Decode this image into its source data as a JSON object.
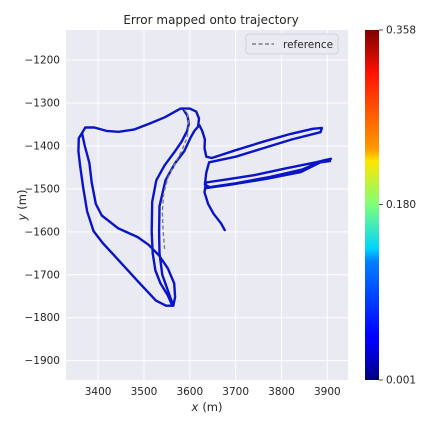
{
  "chart_data": {
    "type": "line",
    "title": "Error mapped onto trajectory",
    "xlabel_var": "x",
    "xlabel_unit": "(m)",
    "ylabel_var": "y",
    "ylabel_unit": "(m)",
    "xlim": [
      3330,
      3945
    ],
    "ylim": [
      -1945,
      -1130
    ],
    "xticks": [
      3400,
      3500,
      3600,
      3700,
      3800,
      3900
    ],
    "yticks": [
      -1200,
      -1300,
      -1400,
      -1500,
      -1600,
      -1700,
      -1800,
      -1900
    ],
    "grid": true,
    "legend": {
      "position": "top-right",
      "entries": [
        "reference"
      ]
    },
    "colorbar": {
      "colormap": "jet",
      "min": 0.001,
      "max": 0.358,
      "ticks": [
        0.001,
        0.18,
        0.358
      ],
      "tick_labels": [
        "0.001",
        "0.180",
        "0.358"
      ]
    },
    "series": [
      {
        "name": "reference",
        "style": "dashed",
        "color": "#7f7f7f",
        "points": [
          [
            3545,
            -1640
          ],
          [
            3542,
            -1600
          ],
          [
            3540,
            -1555
          ],
          [
            3543,
            -1510
          ],
          [
            3552,
            -1475
          ],
          [
            3568,
            -1440
          ],
          [
            3583,
            -1410
          ],
          [
            3594,
            -1380
          ],
          [
            3598,
            -1350
          ],
          [
            3595,
            -1325
          ],
          [
            3588,
            -1315
          ]
        ]
      },
      {
        "style": "solid-colormapped",
        "color_value": 0.02,
        "segments": [
          [
            [
              3365,
              -1370
            ],
            [
              3372,
              -1357
            ],
            [
              3392,
              -1357
            ],
            [
              3418,
              -1365
            ],
            [
              3445,
              -1367
            ],
            [
              3478,
              -1362
            ],
            [
              3512,
              -1348
            ],
            [
              3546,
              -1333
            ],
            [
              3568,
              -1320
            ],
            [
              3580,
              -1313
            ],
            [
              3600,
              -1313
            ],
            [
              3614,
              -1320
            ],
            [
              3620,
              -1336
            ],
            [
              3618,
              -1355
            ],
            [
              3610,
              -1365
            ],
            [
              3602,
              -1380
            ],
            [
              3588,
              -1412
            ],
            [
              3568,
              -1440
            ],
            [
              3547,
              -1480
            ],
            [
              3534,
              -1540
            ],
            [
              3533,
              -1600
            ],
            [
              3534,
              -1650
            ],
            [
              3540,
              -1700
            ],
            [
              3556,
              -1748
            ],
            [
              3564,
              -1772
            ],
            [
              3568,
              -1752
            ],
            [
              3566,
              -1720
            ],
            [
              3552,
              -1685
            ],
            [
              3533,
              -1655
            ],
            [
              3510,
              -1630
            ],
            [
              3486,
              -1612
            ],
            [
              3444,
              -1592
            ],
            [
              3408,
              -1562
            ],
            [
              3395,
              -1535
            ],
            [
              3386,
              -1485
            ],
            [
              3381,
              -1440
            ],
            [
              3371,
              -1400
            ],
            [
              3365,
              -1370
            ]
          ],
          [
            [
              3585,
              -1313
            ],
            [
              3595,
              -1330
            ],
            [
              3598,
              -1348
            ],
            [
              3594,
              -1365
            ],
            [
              3582,
              -1390
            ],
            [
              3566,
              -1415
            ],
            [
              3545,
              -1445
            ],
            [
              3527,
              -1480
            ],
            [
              3518,
              -1530
            ],
            [
              3517,
              -1600
            ],
            [
              3519,
              -1650
            ],
            [
              3525,
              -1690
            ],
            [
              3536,
              -1720
            ],
            [
              3552,
              -1748
            ],
            [
              3562,
              -1772
            ],
            [
              3548,
              -1772
            ],
            [
              3526,
              -1760
            ],
            [
              3484,
              -1712
            ],
            [
              3442,
              -1663
            ],
            [
              3410,
              -1626
            ],
            [
              3390,
              -1598
            ],
            [
              3376,
              -1552
            ],
            [
              3368,
              -1500
            ],
            [
              3361,
              -1448
            ],
            [
              3357,
              -1412
            ],
            [
              3358,
              -1382
            ],
            [
              3365,
              -1370
            ]
          ],
          [
            [
              3621,
              -1352
            ],
            [
              3627,
              -1365
            ],
            [
              3633,
              -1385
            ],
            [
              3632,
              -1405
            ],
            [
              3636,
              -1425
            ],
            [
              3648,
              -1428
            ],
            [
              3700,
              -1410
            ],
            [
              3760,
              -1390
            ],
            [
              3820,
              -1372
            ],
            [
              3868,
              -1360
            ],
            [
              3888,
              -1358
            ],
            [
              3885,
              -1368
            ],
            [
              3822,
              -1385
            ],
            [
              3758,
              -1406
            ],
            [
              3700,
              -1425
            ],
            [
              3642,
              -1438
            ],
            [
              3636,
              -1462
            ],
            [
              3633,
              -1490
            ],
            [
              3643,
              -1496
            ],
            [
              3700,
              -1487
            ],
            [
              3775,
              -1472
            ],
            [
              3845,
              -1455
            ],
            [
              3890,
              -1434
            ],
            [
              3908,
              -1430
            ],
            [
              3875,
              -1438
            ],
            [
              3810,
              -1452
            ],
            [
              3740,
              -1468
            ],
            [
              3680,
              -1478
            ],
            [
              3635,
              -1485
            ],
            [
              3632,
              -1508
            ],
            [
              3640,
              -1535
            ],
            [
              3652,
              -1558
            ],
            [
              3668,
              -1580
            ],
            [
              3676,
              -1596
            ]
          ],
          [
            [
              3636,
              -1498
            ],
            [
              3690,
              -1490
            ],
            [
              3770,
              -1476
            ],
            [
              3842,
              -1461
            ],
            [
              3885,
              -1438
            ],
            [
              3906,
              -1435
            ]
          ]
        ]
      }
    ]
  }
}
